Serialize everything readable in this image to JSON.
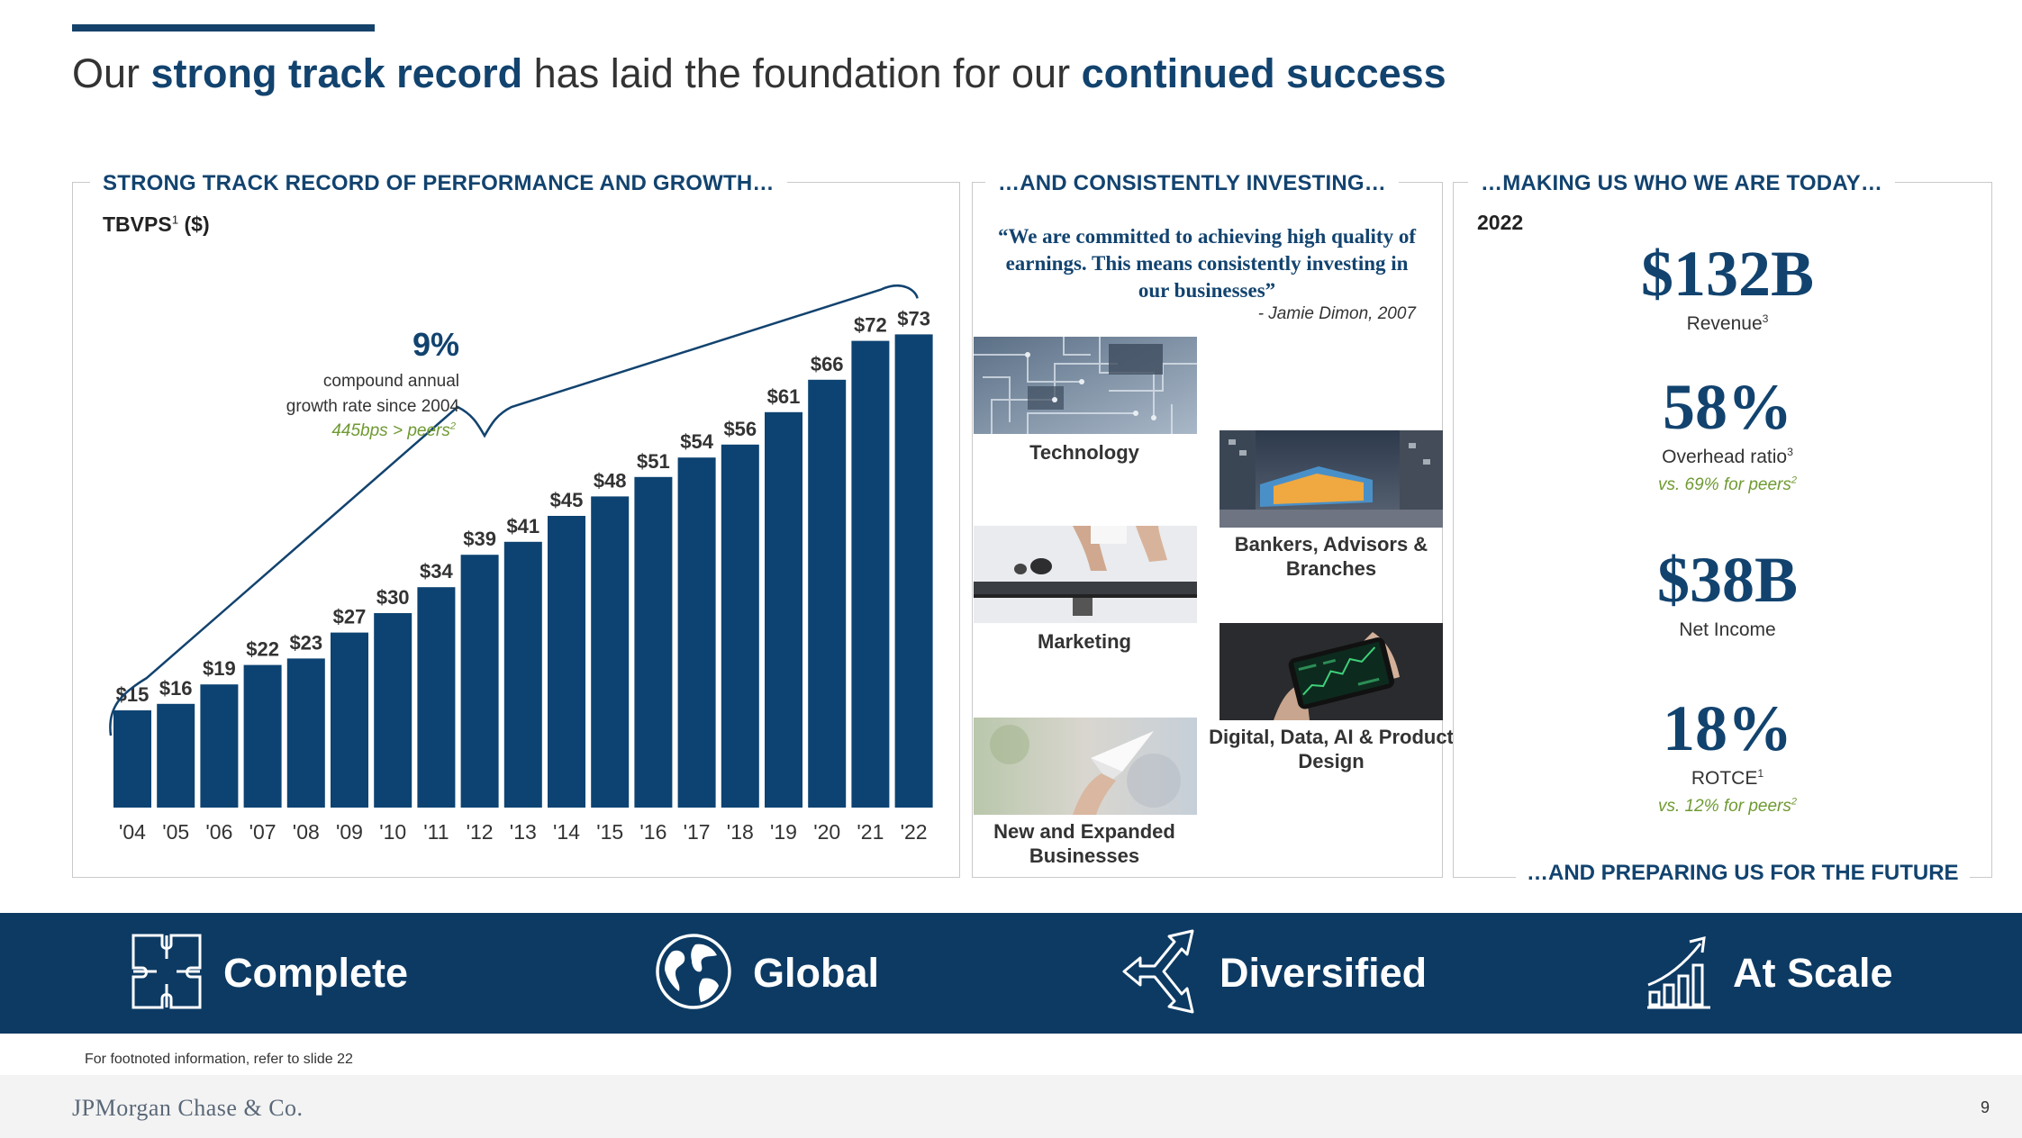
{
  "title": {
    "part1": "Our ",
    "highlight1": "strong track record",
    "part2": " has laid the foundation for our ",
    "highlight2": "continued success"
  },
  "left_panel": {
    "heading": "STRONG TRACK RECORD OF PERFORMANCE AND GROWTH…",
    "subtitle": "TBVPS",
    "subtitle_sup": "1",
    "subtitle_unit": " ($)",
    "cagr_value": "9%",
    "cagr_line1": "compound annual",
    "cagr_line2": "growth rate since 2004",
    "cagr_peers": "445bps > peers",
    "cagr_peers_sup": "2"
  },
  "chart_data": {
    "type": "bar",
    "categories": [
      "'04",
      "'05",
      "'06",
      "'07",
      "'08",
      "'09",
      "'10",
      "'11",
      "'12",
      "'13",
      "'14",
      "'15",
      "'16",
      "'17",
      "'18",
      "'19",
      "'20",
      "'21",
      "'22"
    ],
    "values": [
      15,
      16,
      19,
      22,
      23,
      27,
      30,
      34,
      39,
      41,
      45,
      48,
      51,
      54,
      56,
      61,
      66,
      72,
      73
    ],
    "labels": [
      "$15",
      "$16",
      "$19",
      "$22",
      "$23",
      "$27",
      "$30",
      "$34",
      "$39",
      "$41",
      "$45",
      "$48",
      "$51",
      "$54",
      "$56",
      "$61",
      "$66",
      "$72",
      "$73"
    ],
    "title": "TBVPS ($)",
    "xlabel": "",
    "ylabel": "",
    "ylim": [
      0,
      75
    ],
    "bar_color": "#0c4372",
    "grid": false
  },
  "middle_panel": {
    "heading": "…AND CONSISTENTLY INVESTING…",
    "quote": "“We are committed to achieving high quality of earnings. This means consistently investing in our businesses”",
    "quote_author": "- Jamie Dimon, 2007",
    "items": [
      {
        "label": "Technology",
        "icon": "circuit-board-photo"
      },
      {
        "label": "Marketing",
        "icon": "keyboard-hands-photo"
      },
      {
        "label": "New and Expanded Businesses",
        "icon": "paper-plane-photo"
      },
      {
        "label": "Bankers, Advisors & Branches",
        "icon": "branch-building-photo"
      },
      {
        "label": "Digital, Data, AI & Product Design",
        "icon": "smartphone-trading-photo"
      }
    ]
  },
  "right_panel": {
    "heading": "…MAKING US WHO WE ARE TODAY…",
    "year": "2022",
    "stats": [
      {
        "value": "$132B",
        "label": "Revenue",
        "sup": "3",
        "peer": ""
      },
      {
        "value": "58%",
        "label": "Overhead ratio",
        "sup": "3",
        "peer": "vs. 69% for peers",
        "peer_sup": "2"
      },
      {
        "value": "$38B",
        "label": "Net Income",
        "sup": "",
        "peer": ""
      },
      {
        "value": "18%",
        "label": "ROTCE",
        "sup": "1",
        "peer": "vs. 12% for peers",
        "peer_sup": "2"
      }
    ],
    "future": "…AND PREPARING US FOR THE FUTURE"
  },
  "pillars": [
    {
      "label": "Complete",
      "icon": "puzzle-icon"
    },
    {
      "label": "Global",
      "icon": "globe-icon"
    },
    {
      "label": "Diversified",
      "icon": "diverging-arrows-icon"
    },
    {
      "label": "At Scale",
      "icon": "growth-chart-icon"
    }
  ],
  "colors": {
    "navy": "#0c3a63",
    "title_blue": "#12436f",
    "green": "#6f9a32"
  },
  "footnote": "For footnoted information, refer to slide 22",
  "footer": {
    "logo": "JPMorgan Chase & Co.",
    "page": "9"
  }
}
